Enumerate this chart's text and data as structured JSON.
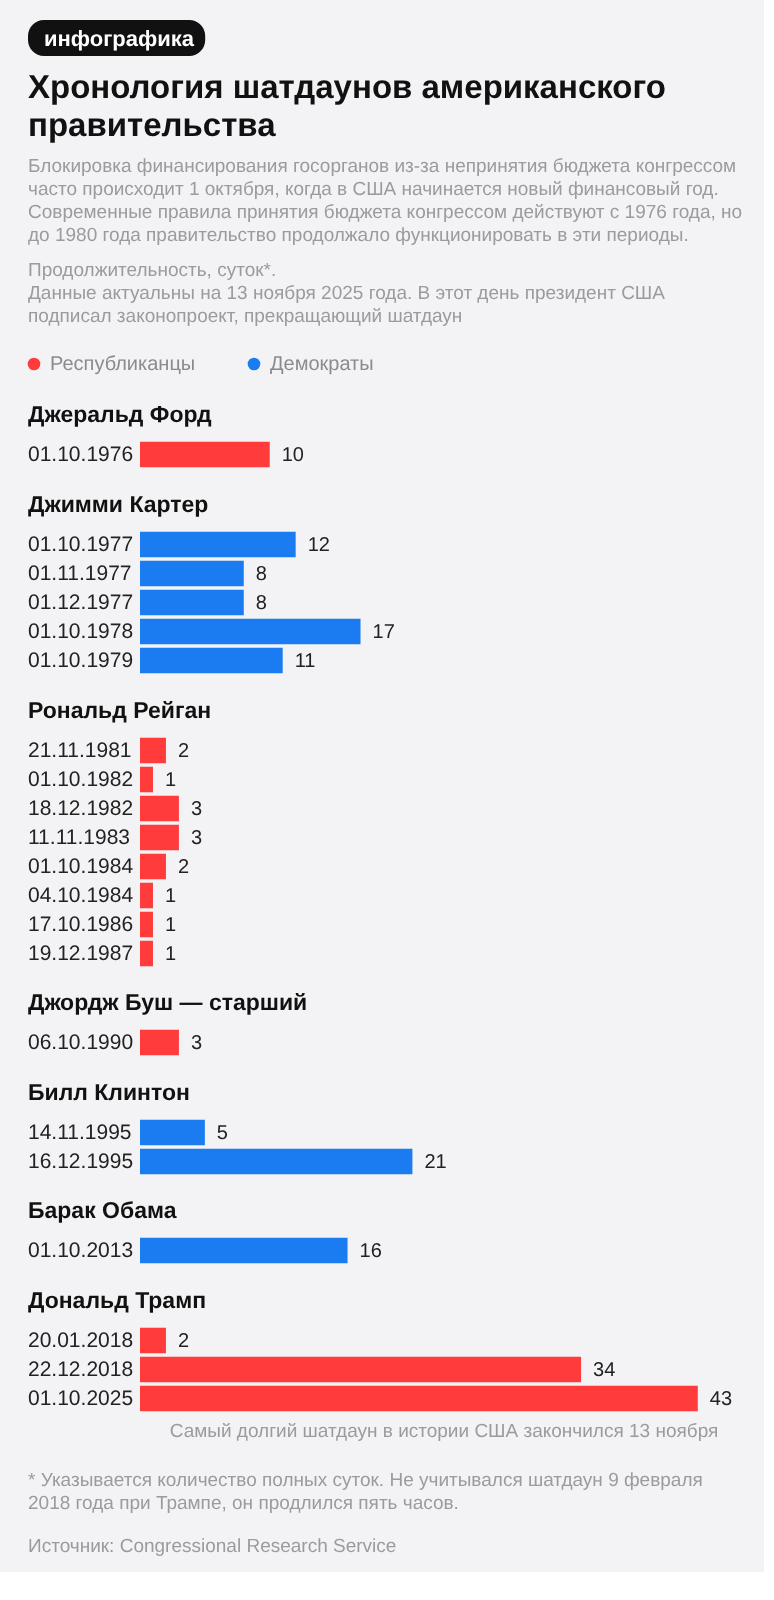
{
  "chart_data": [
    {
      "type": "other",
      "title": "Хронология шатдаунов американского правительства",
      "subtitle": "Блокировка финансирования госорганов из-за непринятия бюджета конгрессом часто происходит 1 октября, когда в США начинается новый финансовый год. Современные правила принятия бюджета конгрессом действуют с 1976 года, но до 1980 года правительство продолжало функционировать в эти периоды.",
      "annotations": [
        "инфографика",
        "Продолжительность, суток*.",
        "Данные актуальны на 13 ноября 2025 года. В этот день президент США подписал законопроект, прекращающий шатдаун"
      ]
    },
    {
      "type": "bar",
      "orientation": "horizontal",
      "title": "Джеральд Форд",
      "categories": [
        "01.10.1976"
      ],
      "legend": "top left",
      "data_labels": true,
      "series": [
        {
          "name": "Республиканцы",
          "color": "#ff3b3b",
          "values": [
            10
          ]
        },
        {
          "name": "Демократы",
          "color": "#1a7cf0",
          "values": [
            null
          ]
        }
      ]
    },
    {
      "type": "bar",
      "orientation": "horizontal",
      "title": "Джимми Картер",
      "categories": [
        "01.10.1977",
        "01.11.1977",
        "01.12.1977",
        "01.10.1978",
        "01.10.1979"
      ],
      "data_labels": true,
      "series": [
        {
          "color": "#1a7cf0",
          "values": [
            12,
            8,
            8,
            17,
            11
          ]
        }
      ]
    },
    {
      "type": "bar",
      "orientation": "horizontal",
      "title": "Рональд Рейган",
      "categories": [
        "21.11.1981",
        "01.10.1982",
        "18.12.1982",
        "11.11.1983",
        "01.10.1984",
        "04.10.1984",
        "17.10.1986",
        "19.12.1987"
      ],
      "data_labels": true,
      "series": [
        {
          "color": "#ff3b3b",
          "values": [
            2,
            1,
            3,
            3,
            2,
            1,
            1,
            1
          ]
        }
      ]
    },
    {
      "type": "bar",
      "orientation": "horizontal",
      "title": "Джордж Буш — старший",
      "categories": [
        "06.10.1990"
      ],
      "data_labels": true,
      "series": [
        {
          "color": "#ff3b3b",
          "values": [
            3
          ]
        }
      ]
    },
    {
      "type": "bar",
      "orientation": "horizontal",
      "title": "Билл Клинтон",
      "categories": [
        "14.11.1995",
        "16.12.1995"
      ],
      "data_labels": true,
      "series": [
        {
          "color": "#1a7cf0",
          "values": [
            5,
            21
          ]
        }
      ]
    },
    {
      "type": "bar",
      "orientation": "horizontal",
      "title": "Барак Обама",
      "categories": [
        "01.10.2013"
      ],
      "data_labels": true,
      "series": [
        {
          "color": "#1a7cf0",
          "values": [
            16
          ]
        }
      ]
    },
    {
      "type": "bar",
      "orientation": "horizontal",
      "title": "Дональд Трамп",
      "categories": [
        "20.01.2018",
        "22.12.2018",
        "01.10.2025"
      ],
      "data_labels": true,
      "annotations": [
        "Самый долгий шатдаун в истории США закончился 13 ноября"
      ],
      "series": [
        {
          "color": "#ff3b3b",
          "values": [
            2,
            34,
            43
          ]
        }
      ]
    },
    {
      "type": "other",
      "annotations": [
        "* Указывается количество полных суток. Не учитывался шатдаун 9 февраля 2018 года при Трампе, он продлился пять часов.",
        "Источник: Congressional Research Service"
      ]
    }
  ]
}
